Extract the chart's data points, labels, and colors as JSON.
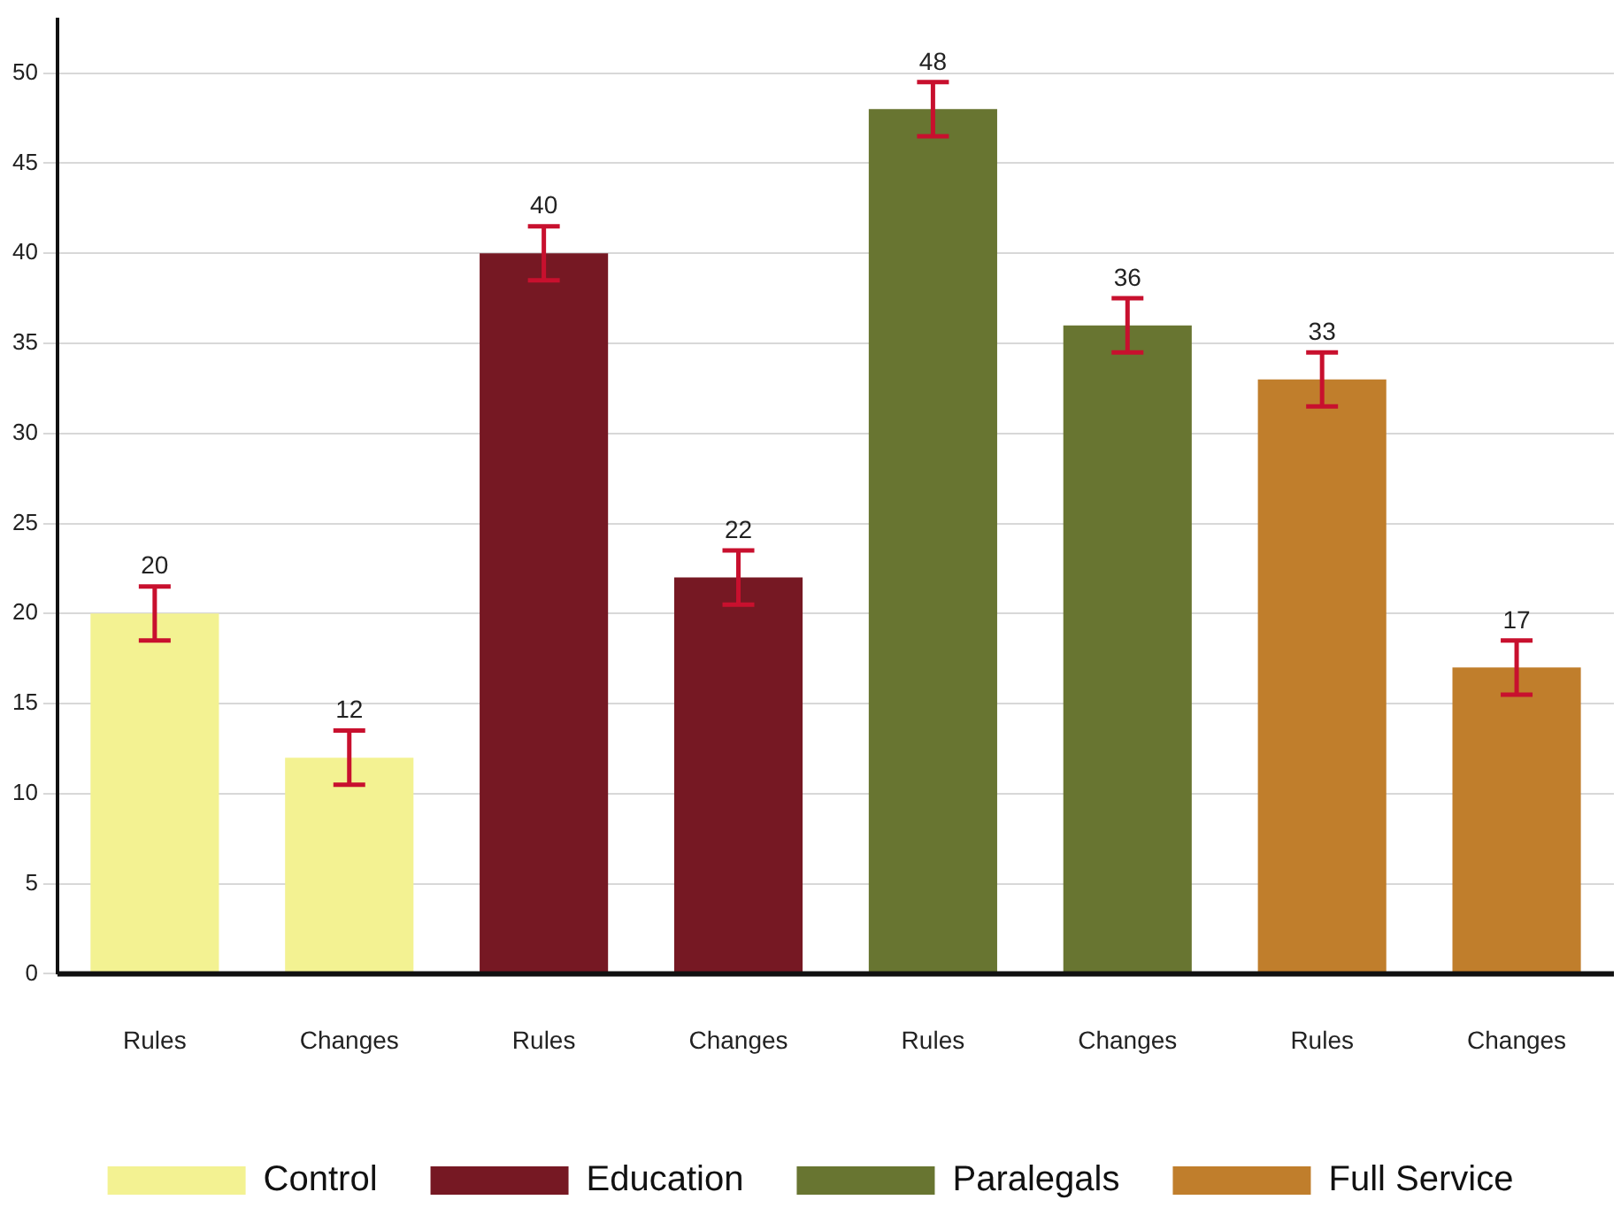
{
  "chart_data": {
    "type": "bar",
    "categories": [
      "Rules",
      "Changes",
      "Rules",
      "Changes",
      "Rules",
      "Changes",
      "Rules",
      "Changes"
    ],
    "series": [
      {
        "name": "Control",
        "color": "#f3f292",
        "values": [
          20,
          12,
          null,
          null,
          null,
          null,
          null,
          null
        ],
        "errors": [
          1.5,
          1.5,
          null,
          null,
          null,
          null,
          null,
          null
        ],
        "value_labels": [
          "20",
          "12",
          null,
          null,
          null,
          null,
          null,
          null
        ]
      },
      {
        "name": "Education",
        "color": "#761823",
        "values": [
          null,
          null,
          40,
          22,
          null,
          null,
          null,
          null
        ],
        "errors": [
          null,
          null,
          1.5,
          1.5,
          null,
          null,
          null,
          null
        ],
        "value_labels": [
          null,
          null,
          "40",
          "22",
          null,
          null,
          null,
          null
        ]
      },
      {
        "name": "Paralegals",
        "color": "#687531",
        "values": [
          null,
          null,
          null,
          null,
          48,
          36,
          null,
          null
        ],
        "errors": [
          null,
          null,
          null,
          null,
          1.5,
          1.5,
          null,
          null
        ],
        "value_labels": [
          null,
          null,
          null,
          null,
          "48",
          "36",
          null,
          null
        ]
      },
      {
        "name": "Full Service",
        "color": "#c07e2c",
        "values": [
          null,
          null,
          null,
          null,
          null,
          null,
          33,
          17
        ],
        "errors": [
          null,
          null,
          null,
          null,
          null,
          null,
          1.5,
          1.5
        ],
        "value_labels": [
          null,
          null,
          null,
          null,
          null,
          null,
          "33",
          "17"
        ]
      }
    ],
    "ylim": [
      0,
      53
    ],
    "yticks": [
      0,
      5,
      10,
      15,
      20,
      25,
      30,
      35,
      40,
      45,
      50
    ],
    "grid": "y",
    "legend": "bottom"
  }
}
